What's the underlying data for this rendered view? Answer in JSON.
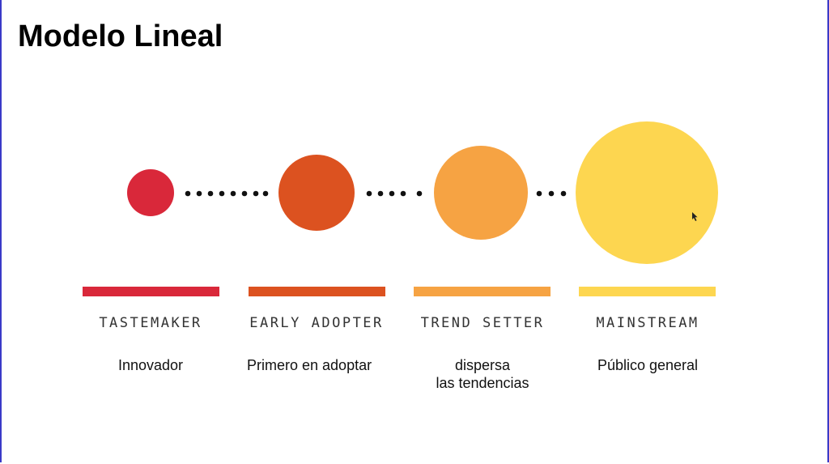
{
  "title": "Modelo Lineal",
  "stages": [
    {
      "label": "TASTEMAKER",
      "description": [
        "Innovador"
      ]
    },
    {
      "label": "EARLY ADOPTER",
      "description": [
        "Primero en adoptar"
      ]
    },
    {
      "label": "TREND SETTER",
      "description": [
        "dispersa",
        "las tendencias"
      ]
    },
    {
      "label": "MAINSTREAM",
      "description": [
        "Público general"
      ]
    }
  ]
}
